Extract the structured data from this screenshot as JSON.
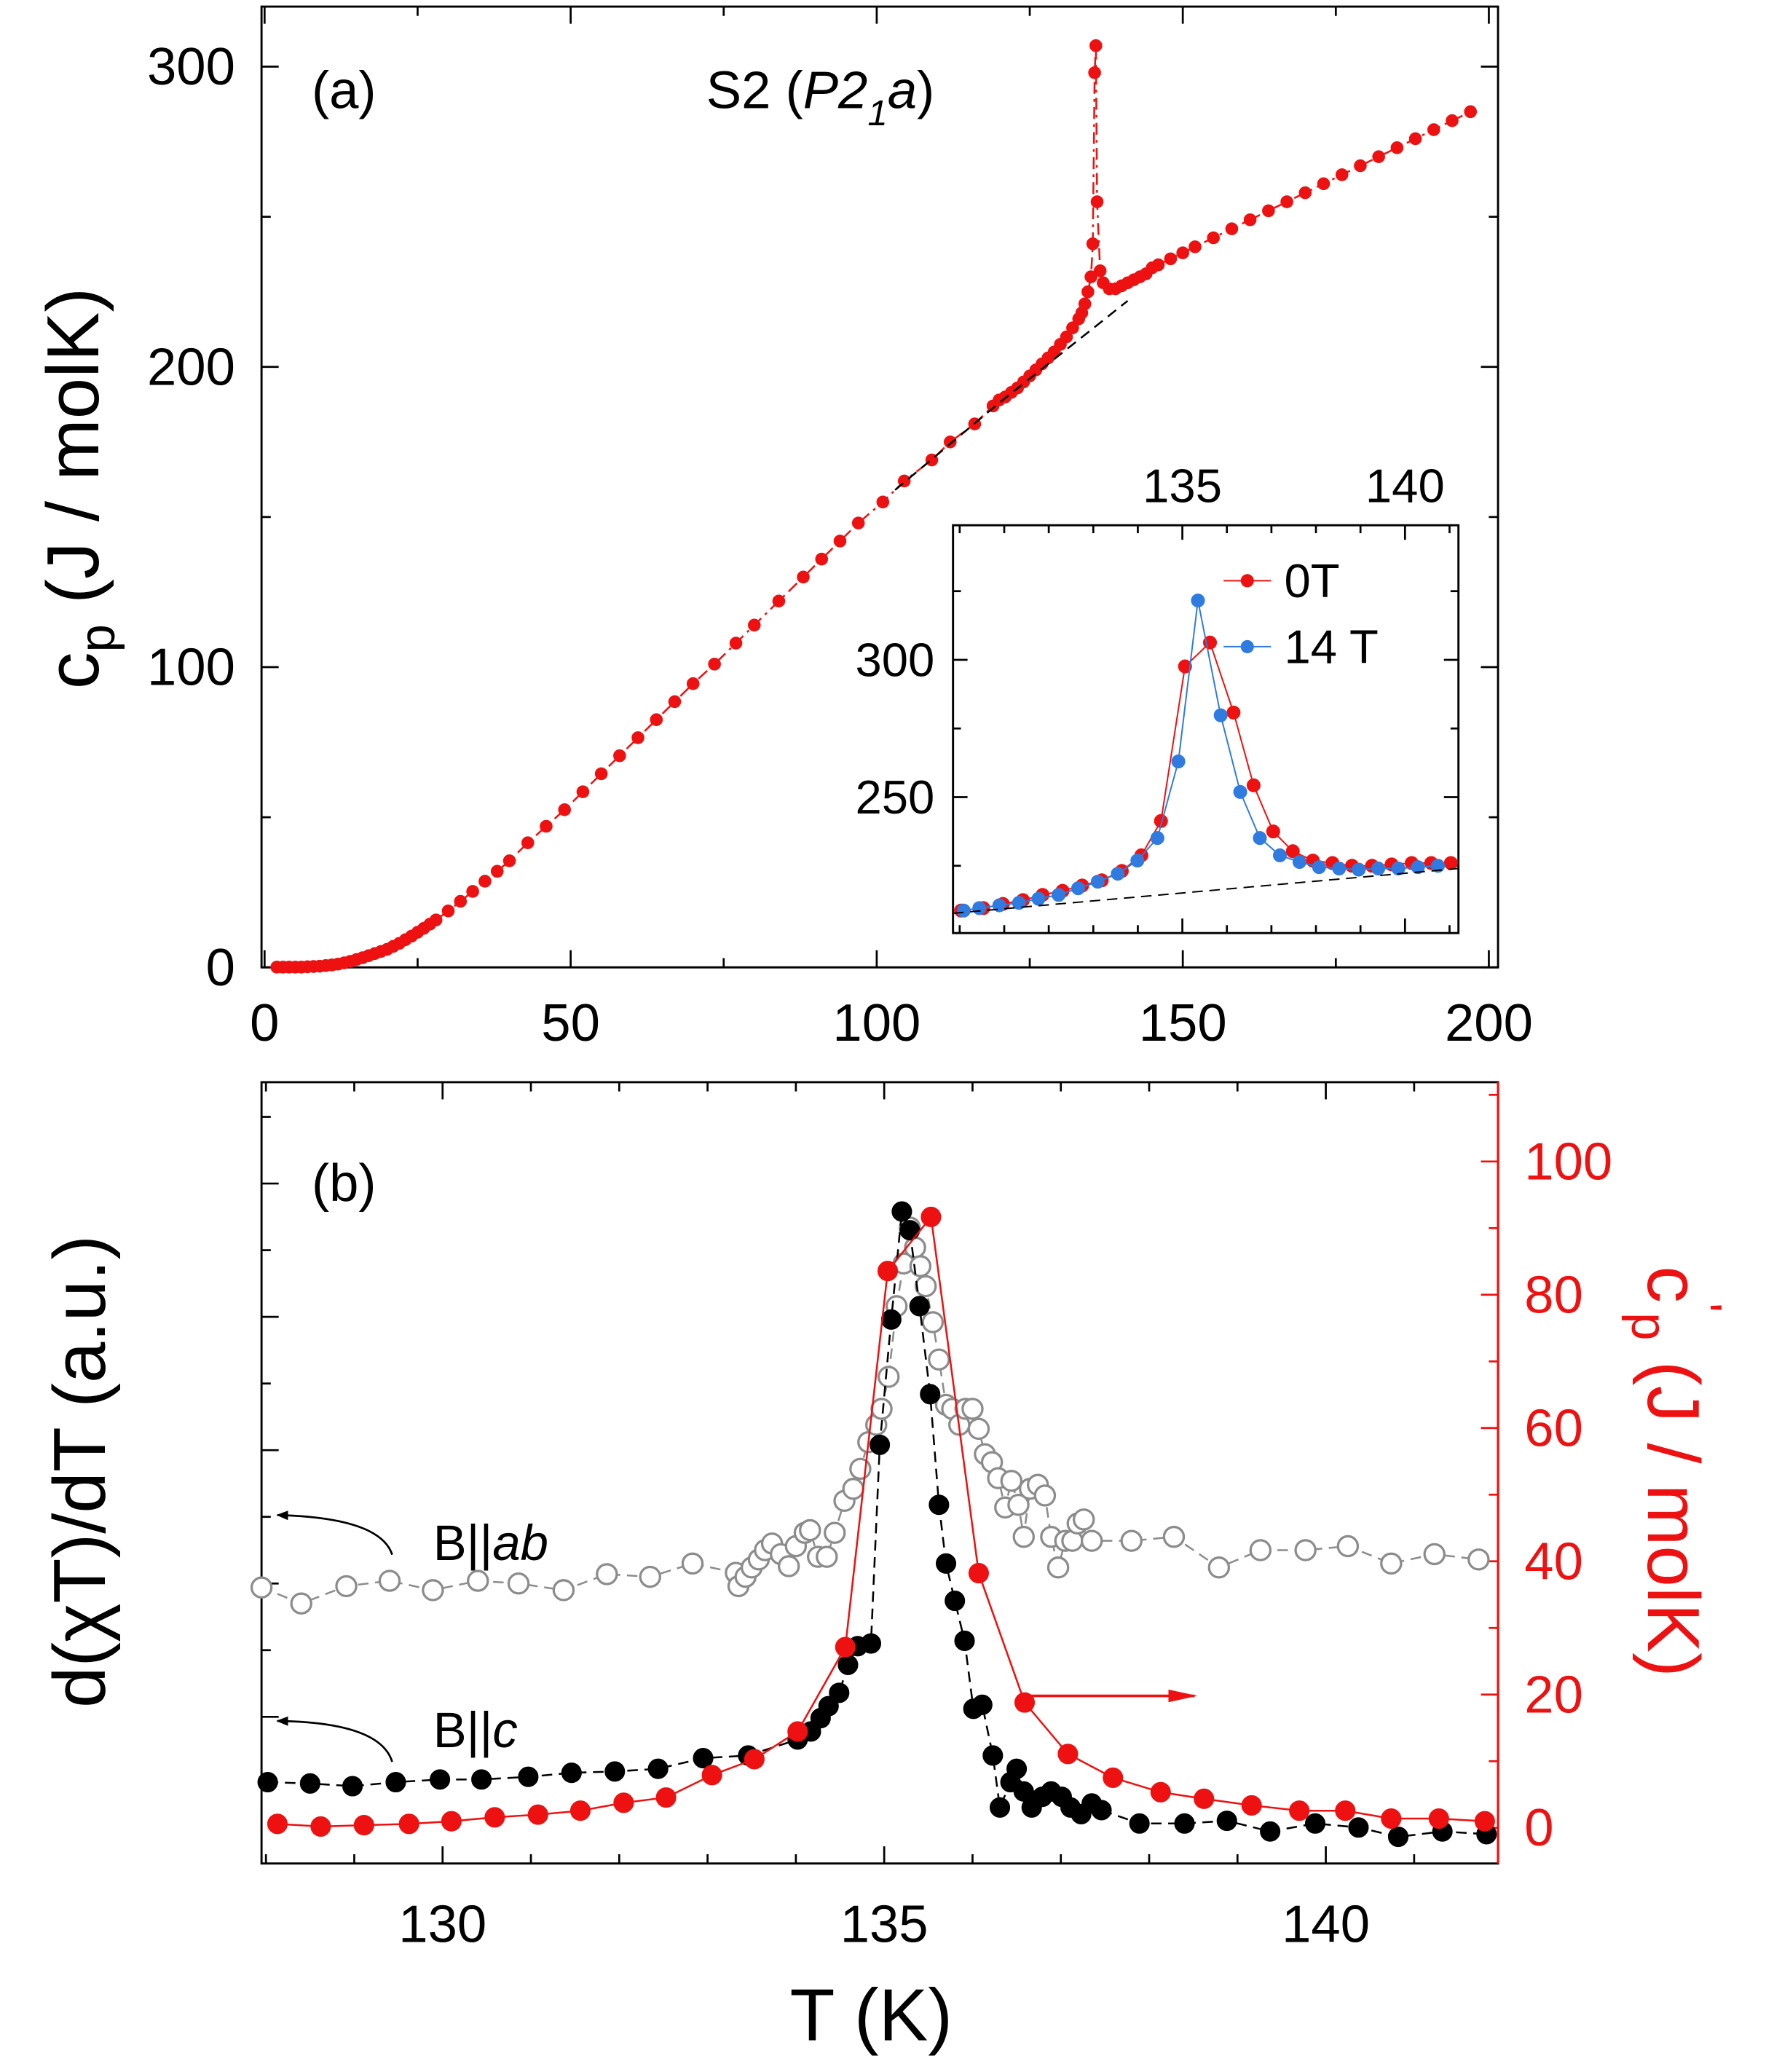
{
  "chart_data": [
    {
      "type": "line",
      "annotations": [
        {
          "parts": [
            {
              "text": "(a)"
            }
          ]
        },
        {
          "parts": [
            {
              "text": "S2 ("
            },
            {
              "text": "P2",
              "italic": true
            },
            {
              "text": "1",
              "sub": true,
              "italic": true
            },
            {
              "text": "a",
              "italic": true
            },
            {
              "text": ")"
            }
          ]
        }
      ],
      "ylabel_parts": [
        {
          "text": "c"
        },
        {
          "text": "p",
          "sub": true
        },
        {
          "text": " (J / molK)"
        }
      ],
      "xlim": [
        -0.5,
        201.5
      ],
      "ylim": [
        0,
        320
      ],
      "xticks": [
        0,
        50,
        100,
        150,
        200
      ],
      "xminorticks": [
        25,
        75,
        125,
        175
      ],
      "yticks": [
        0,
        100,
        200,
        300
      ],
      "yminorticks": [
        50,
        150,
        250
      ],
      "series": [
        {
          "color": "#ee1111",
          "marker": "filled",
          "line": "dashdot",
          "x": [
            2,
            3,
            4,
            5,
            6,
            7,
            8,
            9,
            10,
            11,
            12,
            13,
            14,
            15,
            16,
            17,
            18,
            19,
            20,
            21,
            22,
            23,
            24,
            25,
            26,
            27,
            28,
            30,
            32,
            34,
            36,
            38,
            40,
            43,
            46,
            49,
            52,
            55,
            58,
            61,
            64,
            67,
            70,
            73.5,
            77,
            80,
            84,
            88,
            91,
            94,
            97,
            101,
            104.5,
            109,
            112,
            116,
            119,
            120,
            121,
            122,
            123,
            124,
            125,
            126,
            127,
            128,
            129,
            130,
            131,
            132,
            133,
            133.5,
            134,
            134.5,
            135,
            135.3,
            135.6,
            135.8,
            136,
            136.5,
            137,
            138,
            139,
            140,
            141,
            142,
            143,
            144,
            145,
            146,
            148,
            150,
            152,
            155,
            158,
            161,
            164,
            167,
            170,
            173,
            176,
            179,
            182,
            185,
            188,
            191,
            194,
            197
          ],
          "values": [
            0.1,
            0.1,
            0.1,
            0.1,
            0.1,
            0.2,
            0.3,
            0.4,
            0.6,
            0.8,
            1.1,
            1.5,
            2,
            2.6,
            3.2,
            3.9,
            4.6,
            5.3,
            6,
            7,
            8,
            9.2,
            10.4,
            11.7,
            13,
            14.4,
            15.8,
            18.8,
            22,
            25.3,
            28.7,
            32,
            35.5,
            41.5,
            47,
            52.5,
            58.5,
            64.5,
            70.5,
            76.5,
            82.5,
            88.5,
            94.5,
            101,
            108,
            114,
            122,
            130,
            136,
            142,
            148,
            155,
            162,
            169,
            175,
            181,
            187,
            189,
            190,
            191.5,
            193,
            195,
            197,
            199,
            201,
            203,
            205,
            207.5,
            210,
            213,
            216,
            218,
            221,
            225,
            230,
            241,
            298,
            307,
            255,
            232,
            228,
            226,
            226,
            227,
            228,
            229,
            230,
            231,
            233,
            234,
            236,
            238,
            240,
            243,
            246,
            249,
            252,
            255,
            258,
            261,
            264,
            267,
            270,
            273,
            276,
            279,
            282,
            285
          ]
        },
        {
          "color": "#000000",
          "marker": "none",
          "line": "dashed",
          "x": [
            103,
            120,
            141
          ],
          "values": [
            159,
            188,
            222
          ]
        }
      ]
    },
    {
      "type": "line",
      "xaxis_position": "top",
      "xlim": [
        129.85,
        141.2
      ],
      "ylim": [
        200.5,
        349
      ],
      "xticks": [
        135,
        140
      ],
      "xminorticks": [
        130,
        131,
        132,
        133,
        134,
        136,
        137,
        138,
        139,
        141
      ],
      "yticks": [
        250,
        300
      ],
      "yminorticks": [
        225,
        275,
        325
      ],
      "legend": "upper right",
      "series": [
        {
          "name": "0T",
          "color": "#ee1111",
          "marker": "filled",
          "line": "solid",
          "x": [
            130.03,
            130.53,
            130.97,
            131.42,
            131.86,
            132.31,
            132.75,
            133.19,
            133.64,
            134.08,
            134.52,
            135.06,
            135.62,
            136.15,
            136.6,
            137.04,
            137.48,
            137.93,
            138.37,
            138.81,
            139.26,
            139.7,
            140.15,
            140.59,
            141.03
          ],
          "values": [
            208.7,
            209.6,
            211.1,
            212.5,
            214.4,
            215.9,
            217.8,
            219.7,
            223.1,
            228.8,
            241.3,
            297.6,
            306.3,
            280.8,
            254.3,
            237.5,
            230.3,
            226.9,
            226,
            225,
            225,
            225.5,
            226,
            226,
            226
          ]
        },
        {
          "name": "14 T",
          "color": "#2f7be0",
          "marker": "filled",
          "line": "solid",
          "x": [
            130.09,
            130.44,
            130.89,
            131.33,
            131.77,
            132.22,
            132.66,
            133.1,
            133.55,
            133.99,
            134.44,
            134.91,
            135.35,
            135.86,
            136.3,
            136.74,
            137.19,
            137.63,
            138.07,
            138.52,
            138.96,
            139.4,
            139.85,
            140.29,
            140.74
          ],
          "values": [
            208.7,
            209.6,
            210.6,
            211.5,
            213,
            214.4,
            216.8,
            219.2,
            222.1,
            226.9,
            235.1,
            263,
            321.6,
            279.8,
            251.9,
            235.1,
            228.8,
            226.4,
            224.5,
            224,
            223.6,
            224,
            224,
            224.5,
            225
          ]
        },
        {
          "color": "#000000",
          "marker": "none",
          "line": "dashed",
          "x": [
            129.85,
            141.2
          ],
          "values": [
            207.7,
            224
          ]
        }
      ]
    },
    {
      "type": "line",
      "annotations": [
        {
          "parts": [
            {
              "text": "(b)"
            }
          ]
        },
        {
          "parts": [
            {
              "text": "B||"
            },
            {
              "text": "ab",
              "italic": true
            }
          ]
        },
        {
          "parts": [
            {
              "text": "B||"
            },
            {
              "text": "c",
              "italic": true
            }
          ]
        }
      ],
      "xlabel_parts": [
        {
          "text": "T (K)"
        }
      ],
      "ylabel_parts": [
        {
          "text": "d(χT)/dT (a.u.)"
        }
      ],
      "y2label_parts": [
        {
          "text": "c"
        },
        {
          "text": "'",
          "sup": true
        },
        {
          "text": "p",
          "sub": true
        },
        {
          "text": " (J / molK)"
        }
      ],
      "y2color": "#ee1111",
      "xlim": [
        127.95,
        141.95
      ],
      "ylim": [
        -0.1,
        5.76
      ],
      "y2lim": [
        -5.35,
        111.9
      ],
      "xticks": [
        130,
        135,
        140
      ],
      "xminorticks": [
        128,
        129,
        131,
        132,
        133,
        134,
        136,
        137,
        138,
        139,
        141
      ],
      "yticks": [
        1,
        2,
        3,
        4,
        5
      ],
      "ytick_labels": false,
      "yminorticks": [
        0.5,
        1.5,
        2.5,
        3.5,
        4.5,
        5.5
      ],
      "y2ticks": [
        0,
        20,
        40,
        60,
        80,
        100
      ],
      "y2minorticks": [
        10,
        30,
        50,
        70,
        90,
        110
      ],
      "series": [
        {
          "color": "#8c8c8c",
          "marker": "open",
          "line": "dashed",
          "x": [
            127.95,
            128.4,
            128.91,
            129.4,
            129.89,
            130.4,
            130.86,
            131.37,
            131.86,
            132.35,
            132.83,
            133.32,
            133.35,
            133.43,
            133.5,
            133.58,
            133.65,
            133.73,
            133.83,
            133.92,
            134,
            134.1,
            134.16,
            134.25,
            134.35,
            134.44,
            134.55,
            134.65,
            134.73,
            134.82,
            134.91,
            134.97,
            135.05,
            135.14,
            135.22,
            135.29,
            135.35,
            135.41,
            135.47,
            135.55,
            135.62,
            135.7,
            135.77,
            135.85,
            135.92,
            136,
            136.07,
            136.14,
            136.22,
            136.29,
            136.37,
            136.44,
            136.52,
            136.58,
            136.65,
            136.74,
            136.82,
            136.89,
            136.97,
            137.05,
            137.13,
            137.19,
            137.26,
            137.35,
            137.8,
            138.28,
            138.79,
            139.26,
            139.77,
            140.25,
            140.74,
            141.23,
            141.73
          ],
          "values": [
            1.97,
            1.85,
            1.98,
            2.02,
            1.95,
            2.02,
            2,
            1.95,
            2.07,
            2.05,
            2.15,
            2.08,
            1.98,
            2.05,
            2.12,
            2.18,
            2.25,
            2.3,
            2.22,
            2.13,
            2.28,
            2.38,
            2.4,
            2.2,
            2.2,
            2.38,
            2.62,
            2.71,
            2.86,
            3.06,
            3.19,
            3.31,
            3.55,
            4.08,
            4.4,
            4.67,
            4.52,
            4.38,
            4.23,
            3.96,
            3.68,
            3.34,
            3.31,
            3.19,
            3.31,
            3.31,
            3.16,
            2.97,
            2.91,
            2.79,
            2.57,
            2.77,
            2.59,
            2.35,
            2.71,
            2.74,
            2.66,
            2.35,
            2.12,
            2.32,
            2.32,
            2.45,
            2.48,
            2.32,
            2.32,
            2.35,
            2.12,
            2.25,
            2.25,
            2.28,
            2.15,
            2.22,
            2.18
          ]
        },
        {
          "color": "#000000",
          "marker": "filled",
          "line": "dashed",
          "x": [
            128.02,
            128.5,
            128.98,
            129.47,
            129.97,
            130.44,
            130.97,
            131.46,
            131.95,
            132.44,
            132.95,
            133.46,
            134.02,
            134.17,
            134.28,
            134.37,
            134.49,
            134.59,
            134.7,
            134.85,
            134.95,
            135.08,
            135.2,
            135.29,
            135.4,
            135.52,
            135.62,
            135.7,
            135.8,
            135.91,
            136.01,
            136.11,
            136.23,
            136.31,
            136.43,
            136.5,
            136.58,
            136.67,
            136.79,
            136.89,
            137.01,
            137.11,
            137.23,
            137.35,
            137.46,
            137.89,
            138.4,
            138.88,
            139.37,
            139.88,
            140.37,
            140.82,
            141.32,
            141.82
          ],
          "values": [
            0.51,
            0.5,
            0.48,
            0.51,
            0.53,
            0.53,
            0.55,
            0.58,
            0.59,
            0.61,
            0.69,
            0.71,
            0.83,
            0.89,
            0.99,
            1.08,
            1.18,
            1.39,
            1.53,
            1.55,
            3.04,
            3.98,
            4.79,
            4.65,
            4.08,
            3.42,
            2.59,
            2.15,
            1.87,
            1.57,
            1.06,
            1.09,
            0.71,
            0.32,
            0.51,
            0.61,
            0.44,
            0.32,
            0.4,
            0.44,
            0.4,
            0.32,
            0.27,
            0.35,
            0.3,
            0.2,
            0.2,
            0.22,
            0.14,
            0.2,
            0.17,
            0.1,
            0.14,
            0.12
          ]
        },
        {
          "color": "#ee1111",
          "marker": "filled",
          "line": "solid",
          "axis": "y2",
          "x": [
            128.13,
            128.62,
            129.11,
            129.62,
            130.1,
            130.59,
            131.08,
            131.56,
            132.05,
            132.53,
            133.05,
            133.53,
            134.02,
            134.56,
            135.04,
            135.53,
            136.07,
            136.59,
            137.08,
            137.59,
            138.13,
            138.62,
            139.16,
            139.7,
            140.22,
            140.74,
            141.28,
            141.8
          ],
          "values": [
            0.59,
            0.2,
            0.4,
            0.59,
            0.99,
            1.58,
            1.98,
            2.57,
            3.76,
            4.55,
            7.92,
            10.3,
            14.46,
            27.13,
            83.56,
            91.68,
            38.22,
            18.81,
            11.09,
            7.52,
            5.35,
            4.36,
            3.37,
            2.57,
            2.57,
            1.39,
            1.39,
            0.99
          ]
        }
      ]
    }
  ]
}
